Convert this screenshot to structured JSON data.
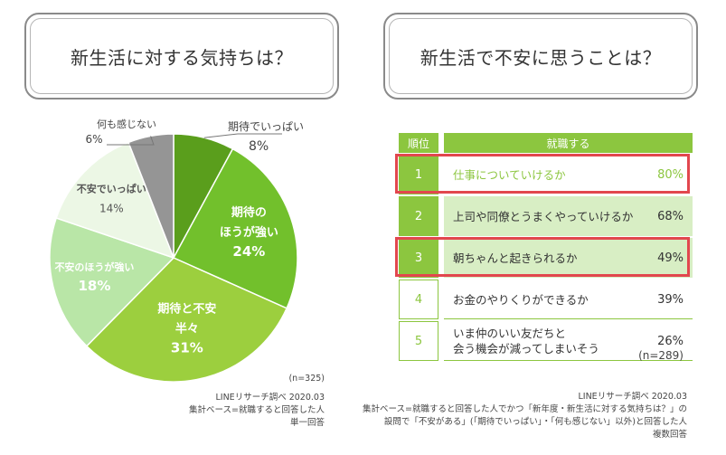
{
  "left_question": "新生活に対する気持ちは？",
  "right_question": "新生活で不安に思うことは？",
  "chart_data": [
    {
      "type": "pie",
      "categories": [
        "期待でいっぱい",
        "期待のほうが強い",
        "期待と不安半々",
        "不安のほうが強い",
        "不安でいっぱい",
        "何も感じない"
      ],
      "values": [
        8,
        24,
        31,
        18,
        14,
        6
      ],
      "value_labels": [
        "8%",
        "24%",
        "31%",
        "18%",
        "14%",
        "6%"
      ],
      "label_lines": [
        [
          "期待でいっぱい"
        ],
        [
          "期待の",
          "ほうが強い"
        ],
        [
          "期待と不安",
          "半々"
        ],
        [
          "不安のほうが強い"
        ],
        [
          "不安でいっぱい"
        ],
        [
          "何も感じない"
        ]
      ],
      "colors": [
        "#5a9e1c",
        "#72c02c",
        "#9ccf3e",
        "#b9e6a7",
        "#ecf7e5",
        "#959595"
      ],
      "n": "(n=325)",
      "notes": [
        "LINEリサーチ調べ 2020.03",
        "集計ベース=就職すると回答した人",
        "単一回答"
      ]
    },
    {
      "type": "table",
      "header": {
        "rank": "順位",
        "group": "就職する"
      },
      "rows": [
        {
          "rank": "1",
          "lines": [
            "仕事についていけるか"
          ],
          "value": 80,
          "pct": "80%",
          "highlight": true
        },
        {
          "rank": "2",
          "lines": [
            "上司や同僚とうまくやっていけるか"
          ],
          "value": 68,
          "pct": "68%",
          "highlight": false
        },
        {
          "rank": "3",
          "lines": [
            "朝ちゃんと起きられるか"
          ],
          "value": 49,
          "pct": "49%",
          "highlight": true
        },
        {
          "rank": "4",
          "lines": [
            "お金のやりくりができるか"
          ],
          "value": 39,
          "pct": "39%",
          "highlight": false
        },
        {
          "rank": "5",
          "lines": [
            "いま仲のいい友だちと",
            "会う機会が減ってしまいそう"
          ],
          "value": 26,
          "pct": "26%",
          "highlight": false
        }
      ],
      "n": "(n=289)",
      "notes": [
        "LINEリサーチ調べ 2020.03",
        "集計ベース=就職すると回答した人でかつ「新年度・新生活に対する気持ちは？」の",
        "設問で「不安がある」(「期待でいっぱい」・「何も感じない」以外)と回答した人",
        "複数回答"
      ]
    }
  ]
}
